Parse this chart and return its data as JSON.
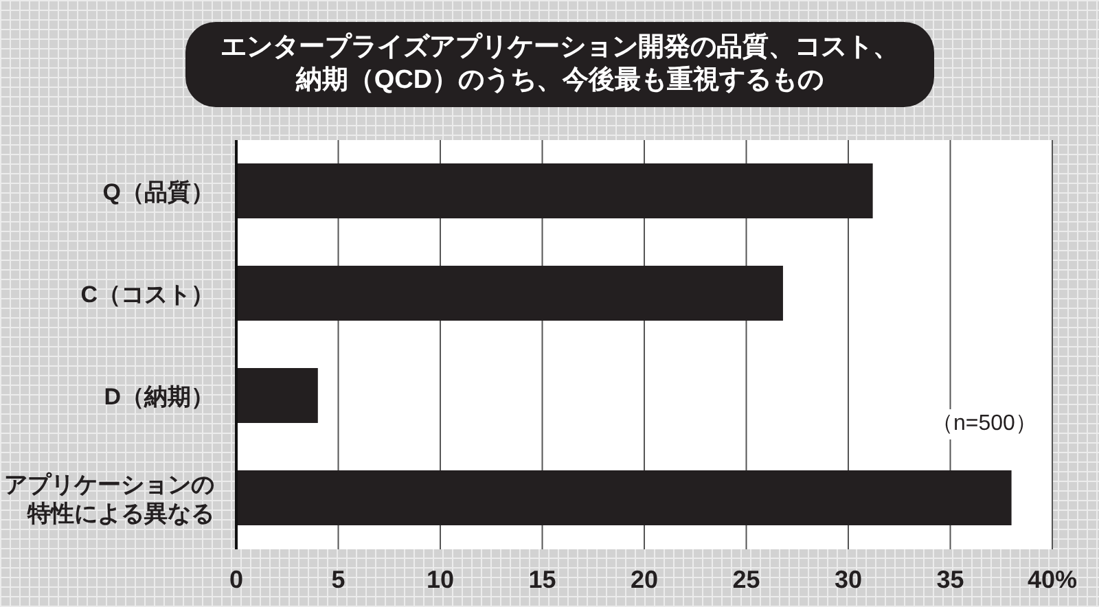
{
  "chart_data": {
    "type": "bar",
    "orientation": "horizontal",
    "title": "エンタープライズアプリケーション開発の品質、コスト、納期（QCD）のうち、今後最も重視するもの",
    "categories": [
      "Q（品質）",
      "C（コスト）",
      "D（納期）",
      "アプリケーションの特性による異なる"
    ],
    "values": [
      31.2,
      26.8,
      4.0,
      38.0
    ],
    "color": "#231f20",
    "xlim": [
      0,
      40
    ],
    "xticks": [
      0,
      5,
      10,
      15,
      20,
      25,
      30,
      35,
      {
        "value": 40,
        "label": "40%"
      }
    ],
    "grid": "x",
    "annotations": [
      "（n=500）"
    ]
  }
}
